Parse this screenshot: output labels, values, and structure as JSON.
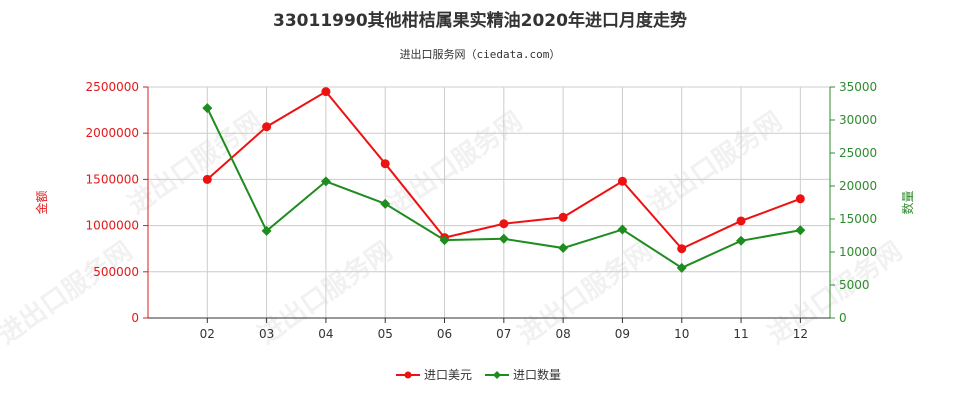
{
  "title": "33011990其他柑桔属果实精油2020年进口月度走势",
  "subtitle": "进出口服务网（ciedata.com）",
  "watermark": "进出口服务网",
  "colors": {
    "left_axis": "#e31a1c",
    "right_axis": "#2e8b2e",
    "amount_series": "#ee1111",
    "quantity_series": "#1e8c1e",
    "grid": "#cccccc",
    "axis": "#333333"
  },
  "chart_data": {
    "type": "line",
    "title": "33011990其他柑桔属果实精油2020年进口月度走势",
    "categories": [
      "02",
      "03",
      "04",
      "05",
      "06",
      "07",
      "08",
      "09",
      "10",
      "11",
      "12"
    ],
    "left_axis": {
      "label": "金额",
      "ylim": [
        0,
        2500000
      ],
      "ticks": [
        "0",
        "500000",
        "1000000",
        "1500000",
        "2000000",
        "2500000"
      ]
    },
    "right_axis": {
      "label": "数量",
      "ylim": [
        0,
        35000
      ],
      "ticks": [
        "0",
        "5000",
        "10000",
        "15000",
        "20000",
        "25000",
        "30000",
        "35000"
      ]
    },
    "series": [
      {
        "name": "进口美元",
        "axis": "left",
        "color": "#ee1111",
        "marker": "circle",
        "values": [
          1500000,
          2070000,
          2450000,
          1670000,
          870000,
          1020000,
          1090000,
          1480000,
          750000,
          1050000,
          1290000
        ]
      },
      {
        "name": "进口数量",
        "axis": "right",
        "color": "#1e8c1e",
        "marker": "diamond",
        "values": [
          31800,
          13200,
          20700,
          17300,
          11800,
          12000,
          10600,
          13400,
          7600,
          11700,
          13300
        ]
      }
    ],
    "grid": true,
    "legend": "bottom-center"
  }
}
